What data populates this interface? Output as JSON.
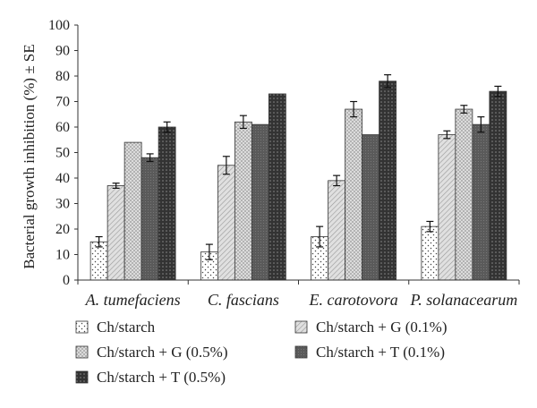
{
  "chart_data": {
    "type": "bar",
    "ylabel": "Bacterial growth inhibition (%) ± SE",
    "xlabel": "",
    "ylim": [
      0,
      100
    ],
    "yticks": [
      0,
      10,
      20,
      30,
      40,
      50,
      60,
      70,
      80,
      90,
      100
    ],
    "grid": false,
    "legend_position": "bottom",
    "categories": [
      "A. tumefaciens",
      "C. fascians",
      "E. carotovora",
      "P. solanacearum"
    ],
    "series": [
      {
        "name": "Ch/starch",
        "pattern": "dots",
        "values": [
          15,
          11,
          17,
          21
        ],
        "errors": [
          2,
          3,
          4,
          2
        ]
      },
      {
        "name": "Ch/starch + G (0.1%)",
        "pattern": "light-hatch",
        "values": [
          37,
          45,
          39,
          57
        ],
        "errors": [
          1,
          3.5,
          2,
          1.5
        ]
      },
      {
        "name": "Ch/starch + G (0.5%)",
        "pattern": "crosshatch",
        "values": [
          54,
          62,
          67,
          67
        ],
        "errors": [
          0,
          2.5,
          3,
          1.5
        ]
      },
      {
        "name": "Ch/starch + T (0.1%)",
        "pattern": "dark",
        "values": [
          48,
          61,
          57,
          61
        ],
        "errors": [
          1.5,
          0,
          0,
          3
        ]
      },
      {
        "name": "Ch/starch + T (0.5%)",
        "pattern": "dark-grid",
        "values": [
          60,
          73,
          78,
          74
        ],
        "errors": [
          2,
          0,
          2.5,
          2
        ]
      }
    ]
  }
}
